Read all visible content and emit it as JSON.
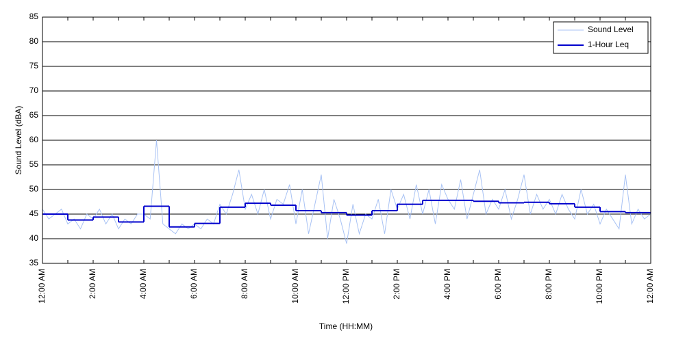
{
  "chart_data": {
    "type": "line",
    "y_label": "Sound Level (dBA)",
    "x_label": "Time (HH:MM)",
    "ylim": [
      35,
      85
    ],
    "yticks": [
      35,
      40,
      45,
      50,
      55,
      60,
      65,
      70,
      75,
      80,
      85
    ],
    "xlim": [
      0,
      24
    ],
    "xticks": [
      {
        "value": 0,
        "label": "12:00 AM"
      },
      {
        "value": 2,
        "label": "2:00 AM"
      },
      {
        "value": 4,
        "label": "4:00 AM"
      },
      {
        "value": 6,
        "label": "6:00 AM"
      },
      {
        "value": 8,
        "label": "8:00 AM"
      },
      {
        "value": 10,
        "label": "10:00 AM"
      },
      {
        "value": 12,
        "label": "12:00 PM"
      },
      {
        "value": 14,
        "label": "2:00 PM"
      },
      {
        "value": 16,
        "label": "4:00 PM"
      },
      {
        "value": 18,
        "label": "6:00 PM"
      },
      {
        "value": 20,
        "label": "8:00 PM"
      },
      {
        "value": 22,
        "label": "10:00 PM"
      },
      {
        "value": 24,
        "label": "12:00 AM"
      }
    ],
    "grid": true,
    "legend": "upper right",
    "series": [
      {
        "name": "Sound Level",
        "color": "#a8c2f4",
        "step": false,
        "x": [
          0,
          0.25,
          0.5,
          0.75,
          1,
          1.25,
          1.5,
          1.75,
          2,
          2.25,
          2.5,
          2.75,
          3,
          3.25,
          3.5,
          3.75,
          4,
          4.25,
          4.5,
          4.75,
          5,
          5.25,
          5.5,
          5.75,
          6,
          6.25,
          6.5,
          6.75,
          7,
          7.25,
          7.5,
          7.75,
          8,
          8.25,
          8.5,
          8.75,
          9,
          9.25,
          9.5,
          9.75,
          10,
          10.25,
          10.5,
          10.75,
          11,
          11.25,
          11.5,
          11.75,
          12,
          12.25,
          12.5,
          12.75,
          13,
          13.25,
          13.5,
          13.75,
          14,
          14.25,
          14.5,
          14.75,
          15,
          15.25,
          15.5,
          15.75,
          16,
          16.25,
          16.5,
          16.75,
          17,
          17.25,
          17.5,
          17.75,
          18,
          18.25,
          18.5,
          18.75,
          19,
          19.25,
          19.5,
          19.75,
          20,
          20.25,
          20.5,
          20.75,
          21,
          21.25,
          21.5,
          21.75,
          22,
          22.25,
          22.5,
          22.75,
          23,
          23.25,
          23.5,
          23.75,
          24
        ],
        "values": [
          46,
          44,
          45,
          46,
          43,
          44,
          42,
          45,
          44,
          46,
          43,
          45,
          42,
          44,
          43,
          45,
          45,
          44,
          60,
          43,
          42,
          41,
          43,
          42,
          43,
          42,
          44,
          43,
          47,
          45,
          49,
          54,
          46,
          49,
          45,
          50,
          44,
          48,
          47,
          51,
          43,
          50,
          41,
          47,
          53,
          40,
          48,
          44,
          39,
          47,
          41,
          45,
          44,
          48,
          41,
          50,
          46,
          49,
          44,
          51,
          45,
          50,
          43,
          51,
          48,
          46,
          52,
          44,
          49,
          54,
          45,
          48,
          46,
          50,
          44,
          48,
          53,
          45,
          49,
          46,
          48,
          45,
          49,
          46,
          44,
          50,
          45,
          47,
          43,
          46,
          44,
          42,
          53,
          43,
          46,
          44,
          45
        ]
      },
      {
        "name": "1-Hour Leq",
        "color": "#0000cc",
        "step": true,
        "x": [
          0,
          1,
          2,
          3,
          4,
          5,
          6,
          7,
          8,
          9,
          10,
          11,
          12,
          13,
          14,
          15,
          16,
          17,
          18,
          19,
          20,
          21,
          22,
          23
        ],
        "values": [
          45.0,
          43.8,
          44.4,
          43.4,
          46.6,
          42.4,
          43.1,
          46.4,
          47.2,
          46.8,
          45.7,
          45.3,
          44.8,
          45.7,
          47.0,
          47.8,
          47.8,
          47.6,
          47.3,
          47.4,
          47.1,
          46.4,
          45.5,
          45.3
        ]
      }
    ]
  }
}
